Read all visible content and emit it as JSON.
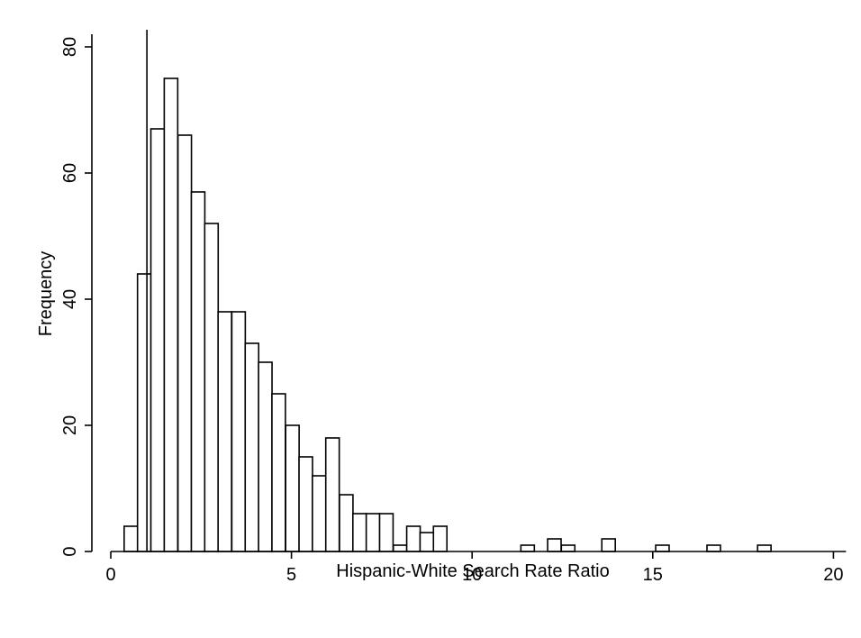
{
  "chart_data": {
    "type": "bar",
    "title": "",
    "xlabel": "Hispanic-White Search Rate Ratio",
    "ylabel": "Frequency",
    "xlim": [
      0,
      20
    ],
    "ylim": [
      0,
      80
    ],
    "x_ticks": [
      "0",
      "5",
      "10",
      "15",
      "20"
    ],
    "y_ticks": [
      "0",
      "20",
      "40",
      "60",
      "80"
    ],
    "reference_line_x": 1,
    "grid": false,
    "bin_width": 0.373,
    "bins": [
      {
        "start": 0.37,
        "value": 4
      },
      {
        "start": 0.74,
        "value": 44
      },
      {
        "start": 1.11,
        "value": 67
      },
      {
        "start": 1.48,
        "value": 75
      },
      {
        "start": 1.86,
        "value": 66
      },
      {
        "start": 2.23,
        "value": 57
      },
      {
        "start": 2.6,
        "value": 52
      },
      {
        "start": 2.97,
        "value": 38
      },
      {
        "start": 3.35,
        "value": 38
      },
      {
        "start": 3.72,
        "value": 33
      },
      {
        "start": 4.09,
        "value": 30
      },
      {
        "start": 4.46,
        "value": 25
      },
      {
        "start": 4.84,
        "value": 20
      },
      {
        "start": 5.21,
        "value": 15
      },
      {
        "start": 5.58,
        "value": 12
      },
      {
        "start": 5.95,
        "value": 18
      },
      {
        "start": 6.33,
        "value": 9
      },
      {
        "start": 6.7,
        "value": 6
      },
      {
        "start": 7.07,
        "value": 6
      },
      {
        "start": 7.44,
        "value": 6
      },
      {
        "start": 7.82,
        "value": 1
      },
      {
        "start": 8.19,
        "value": 4
      },
      {
        "start": 8.56,
        "value": 3
      },
      {
        "start": 8.93,
        "value": 4
      },
      {
        "start": 11.35,
        "value": 1
      },
      {
        "start": 12.09,
        "value": 2
      },
      {
        "start": 12.47,
        "value": 1
      },
      {
        "start": 13.59,
        "value": 2
      },
      {
        "start": 15.08,
        "value": 1
      },
      {
        "start": 16.5,
        "value": 1
      },
      {
        "start": 17.9,
        "value": 1
      }
    ]
  }
}
